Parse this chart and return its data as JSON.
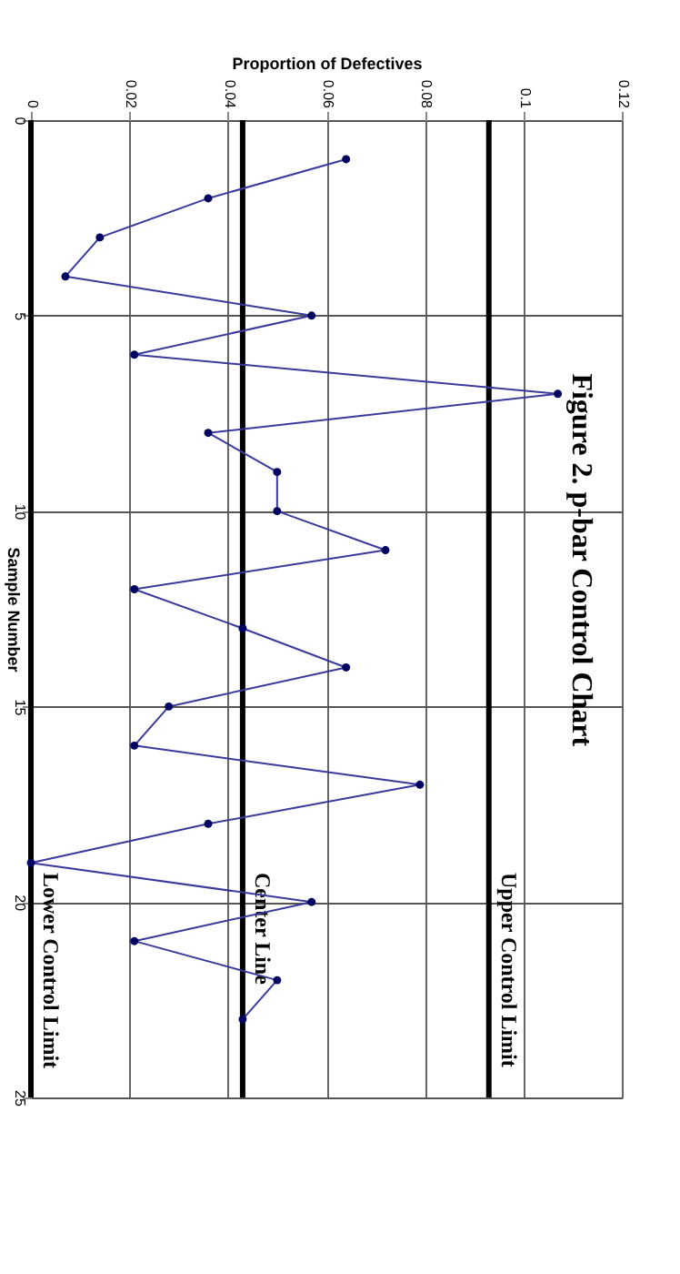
{
  "chart_data": {
    "type": "line",
    "title": "Figure 2.    p-bar Control Chart",
    "xlabel": "Proportion of Defectives",
    "ylabel": "Sample Number",
    "series": [
      {
        "color": "#3a3a9c",
        "x": [
          0.064,
          0.036,
          0.014,
          0.007,
          0.057,
          0.021,
          0.107,
          0.036,
          0.05,
          0.05,
          0.072,
          0.021,
          0.043,
          0.064,
          0.028,
          0.021,
          0.079,
          0.036,
          0,
          0.057,
          0.021,
          0.05,
          0.043
        ],
        "values": [
          1,
          2,
          3,
          4,
          5,
          6,
          7,
          8,
          9,
          10,
          11,
          12,
          13,
          14,
          15,
          16,
          17,
          18,
          19,
          20,
          21,
          22,
          23
        ]
      }
    ],
    "xlim": [
      0,
      0.12
    ],
    "xticks": [
      0,
      0.02,
      0.04,
      0.06,
      0.08,
      0.1,
      0.12
    ],
    "ylim": [
      25,
      0
    ],
    "yticks": [
      0,
      5,
      10,
      15,
      20,
      25
    ],
    "ref_lines": [
      {
        "axis": "x",
        "value": 0.093,
        "label": "Upper Control Limit",
        "color": "#000000"
      },
      {
        "axis": "x",
        "value": 0.043,
        "label": "Center Line",
        "color": "#000000"
      },
      {
        "axis": "x",
        "value": 0,
        "label": "Lower Control Limit",
        "color": "#000000"
      }
    ],
    "grid": true,
    "marker": "circle",
    "line_style": "solid"
  }
}
